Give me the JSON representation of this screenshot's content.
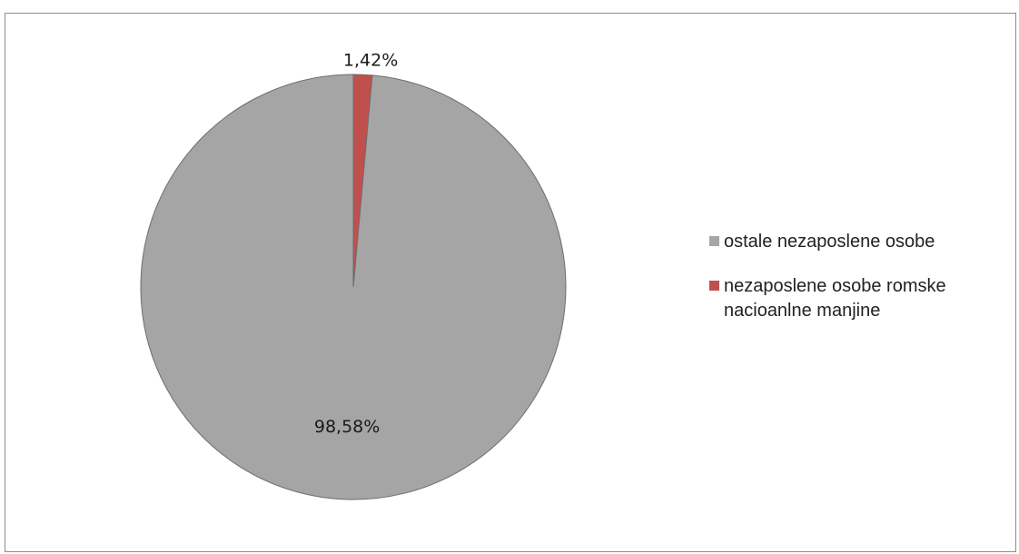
{
  "chart_data": {
    "type": "pie",
    "series": [
      {
        "name": "ostale nezaposlene osobe",
        "value": 98.58,
        "label": "98,58%",
        "color": "#a5a5a5"
      },
      {
        "name": "nezaposlene osobe romske nacioanlne manjine",
        "value": 1.42,
        "label": "1,42%",
        "color": "#c0504d"
      }
    ],
    "title": "",
    "legend_position": "right",
    "start_angle_deg": 0,
    "direction": "counterclockwise"
  },
  "colors": {
    "slice_stroke": "#6d6d6d",
    "frame_border": "#8c8c8c"
  },
  "legend": {
    "items": [
      {
        "label": "ostale nezaposlene osobe",
        "color": "#a5a5a5"
      },
      {
        "label": "nezaposlene osobe romske nacioanlne manjine",
        "color": "#c0504d"
      }
    ]
  }
}
